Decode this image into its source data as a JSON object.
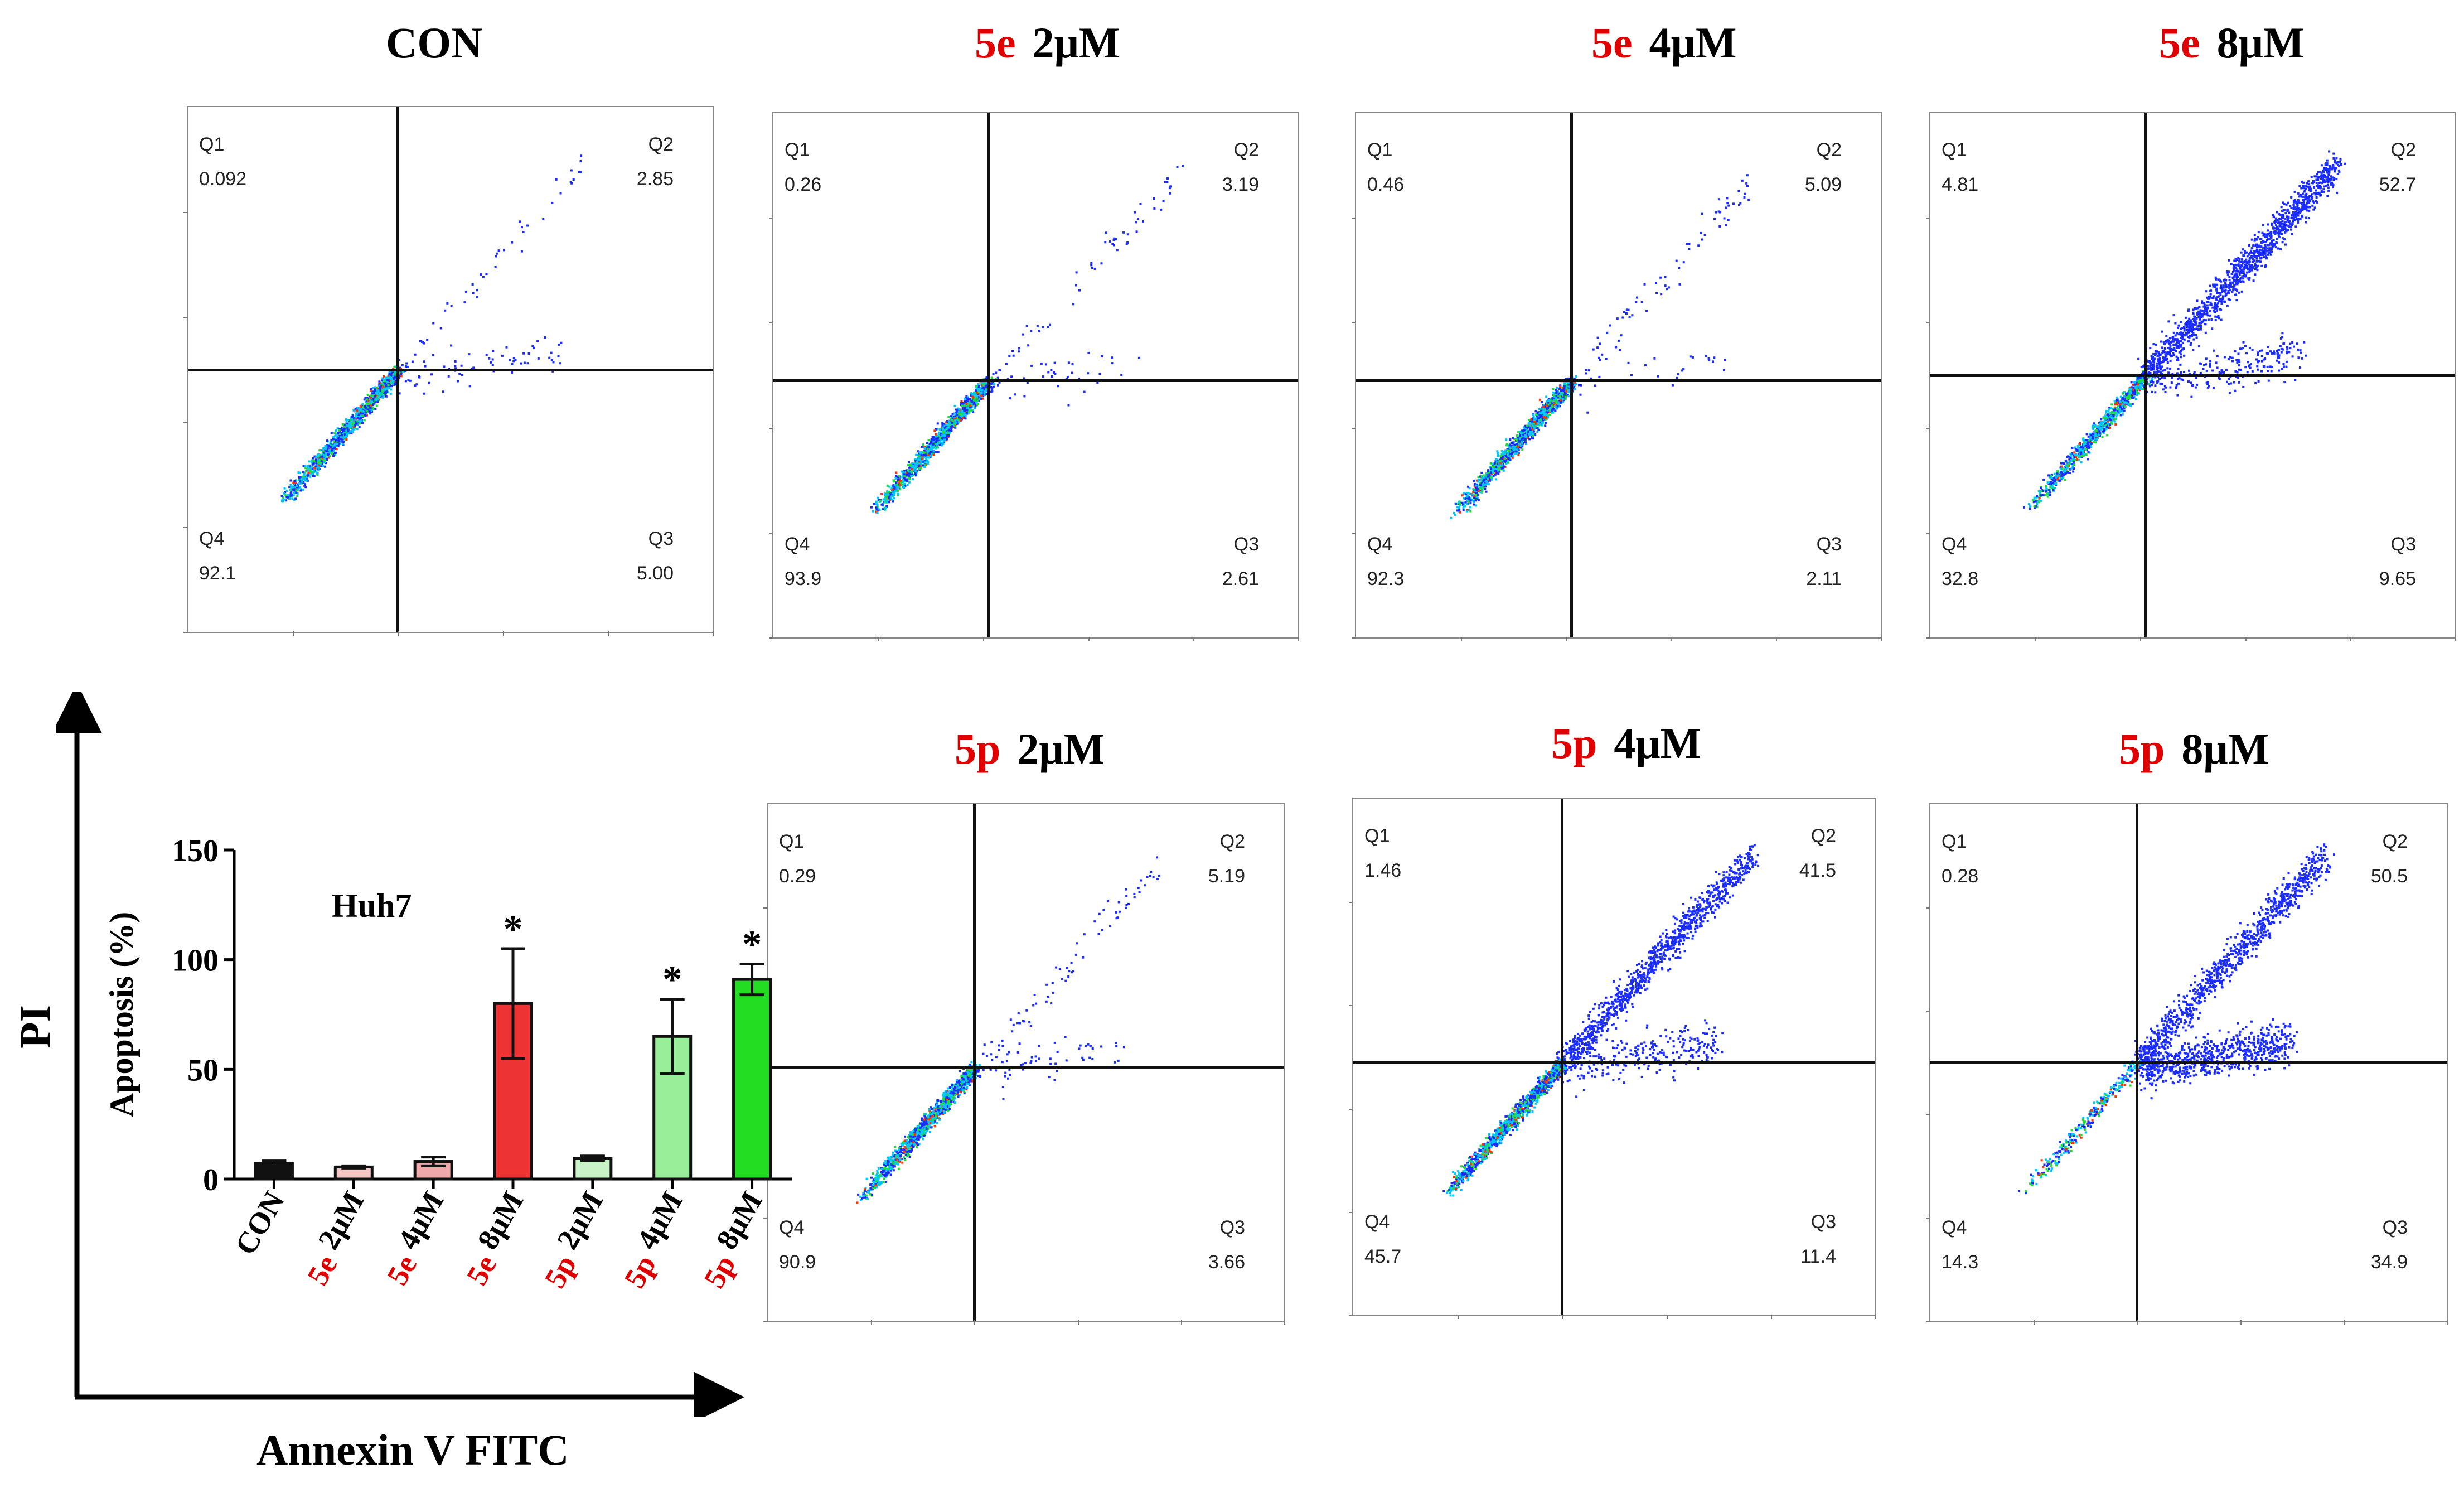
{
  "colors": {
    "compound": "#e00000",
    "bar_border": "#111111",
    "dot_low": "#1a2cff",
    "dot_mid": "#00c8ff",
    "dot_high": "#22dd33",
    "dot_peak": "#ff3300"
  },
  "axes": {
    "y_title": "PI",
    "x_title": "Annexin V FITC"
  },
  "quadrant_labels": {
    "q1": "Q1",
    "q2": "Q2",
    "q3": "Q3",
    "q4": "Q4"
  },
  "panels": [
    {
      "id": "con",
      "compound": "",
      "concentration": "CON",
      "q1": "0.092",
      "q2": "2.85",
      "q3": "5.00",
      "q4": "92.1",
      "gate_x": 0.4,
      "gate_y": 0.5,
      "density": 1
    },
    {
      "id": "5e-2",
      "compound": "5e",
      "concentration": "2μM",
      "q1": "0.26",
      "q2": "3.19",
      "q3": "2.61",
      "q4": "93.9",
      "gate_x": 0.41,
      "gate_y": 0.51,
      "density": 1
    },
    {
      "id": "5e-4",
      "compound": "5e",
      "concentration": "4μM",
      "q1": "0.46",
      "q2": "5.09",
      "q3": "2.11",
      "q4": "92.3",
      "gate_x": 0.41,
      "gate_y": 0.51,
      "density": 1
    },
    {
      "id": "5e-8",
      "compound": "5e",
      "concentration": "8μM",
      "q1": "4.81",
      "q2": "52.7",
      "q3": "9.65",
      "q4": "32.8",
      "gate_x": 0.41,
      "gate_y": 0.5,
      "density": 3
    },
    {
      "id": "5p-2",
      "compound": "5p",
      "concentration": "2μM",
      "q1": "0.29",
      "q2": "5.19",
      "q3": "3.66",
      "q4": "90.9",
      "gate_x": 0.4,
      "gate_y": 0.51,
      "density": 1
    },
    {
      "id": "5p-4",
      "compound": "5p",
      "concentration": "4μM",
      "q1": "1.46",
      "q2": "41.5",
      "q3": "11.4",
      "q4": "45.7",
      "gate_x": 0.4,
      "gate_y": 0.51,
      "density": 3
    },
    {
      "id": "5p-8",
      "compound": "5p",
      "concentration": "8μM",
      "q1": "0.28",
      "q2": "50.5",
      "q3": "34.9",
      "q4": "14.3",
      "gate_x": 0.4,
      "gate_y": 0.5,
      "density": 2
    }
  ],
  "chart_data": {
    "type": "bar",
    "title": "Huh7",
    "ylabel": "Apoptosis (%)",
    "xlabel": "",
    "ylim": [
      0,
      150
    ],
    "yticks": [
      0,
      50,
      100,
      150
    ],
    "categories": [
      {
        "compound": "",
        "concentration": "CON"
      },
      {
        "compound": "5e",
        "concentration": "2μM"
      },
      {
        "compound": "5e",
        "concentration": "4μM"
      },
      {
        "compound": "5e",
        "concentration": "8μM"
      },
      {
        "compound": "5p",
        "concentration": "2μM"
      },
      {
        "compound": "5p",
        "concentration": "4μM"
      },
      {
        "compound": "5p",
        "concentration": "8μM"
      }
    ],
    "values": [
      7,
      5.5,
      8,
      80,
      9.5,
      65,
      91
    ],
    "errors": [
      1.5,
      0.5,
      2,
      25,
      1,
      17,
      7
    ],
    "significance": [
      "",
      "",
      "",
      "*",
      "",
      "*",
      "*"
    ],
    "bar_colors": [
      "#111111",
      "#f4c6c6",
      "#f0a8a8",
      "#ee3333",
      "#c9f2c9",
      "#99ee99",
      "#22dd22"
    ]
  }
}
